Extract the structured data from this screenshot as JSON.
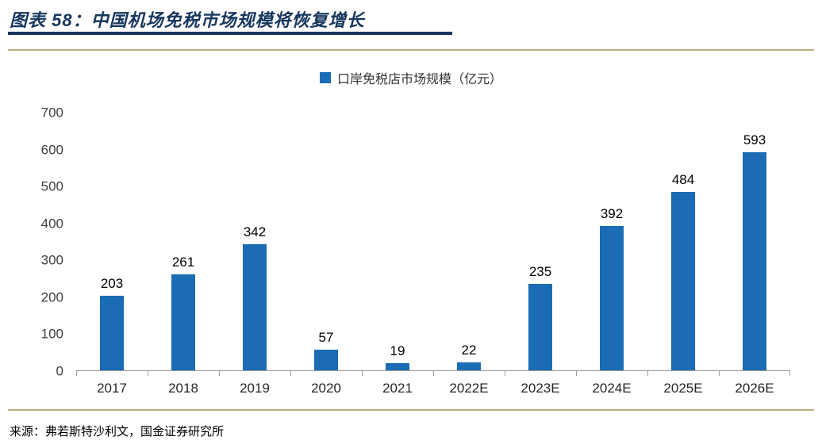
{
  "header": {
    "title": "图表 58：中国机场免税市场规模将恢复增长"
  },
  "legend": {
    "label": "口岸免税店市场规模（亿元）"
  },
  "colors": {
    "bar": "#1b6cb4",
    "title": "#17365d",
    "panel_border": "#bfb184",
    "axis": "#9b9b9b"
  },
  "chart_data": {
    "type": "bar",
    "title": "",
    "categories": [
      "2017",
      "2018",
      "2019",
      "2020",
      "2021",
      "2022E",
      "2023E",
      "2024E",
      "2025E",
      "2026E"
    ],
    "values": [
      203,
      261,
      342,
      57,
      19,
      22,
      235,
      392,
      484,
      593
    ],
    "series": [
      {
        "name": "口岸免税店市场规模（亿元）",
        "values": [
          203,
          261,
          342,
          57,
          19,
          22,
          235,
          392,
          484,
          593
        ]
      }
    ],
    "legend": [
      "口岸免税店市场规模（亿元）"
    ],
    "legend_position": "top",
    "xlabel": "",
    "ylabel": "",
    "ylim": [
      0,
      700
    ],
    "ytick_interval": 100,
    "grid": false,
    "data_labels": true
  },
  "footer": {
    "source": "来源：弗若斯特沙利文，国金证券研究所"
  }
}
